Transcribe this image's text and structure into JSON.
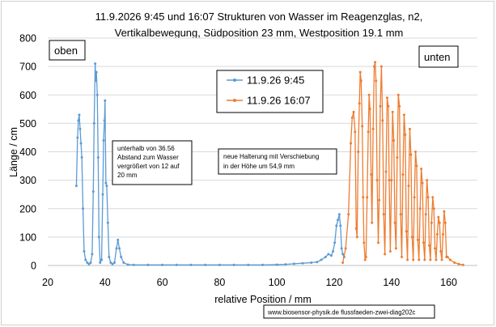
{
  "chart_data": {
    "type": "line",
    "title_line1": "11.9.2026  9:45 und 16:07  Strukturen von Wasser im Reagenzglas, n2,",
    "title_line2": "Vertikalbewegung, Südposition 23 mm, Westposition 19.1 mm",
    "xlabel": "relative Position / mm",
    "ylabel": "Länge / cm",
    "xlim": [
      20,
      170
    ],
    "ylim": [
      0,
      800
    ],
    "xticks": [
      20,
      40,
      60,
      80,
      100,
      120,
      140,
      160
    ],
    "yticks": [
      0,
      100,
      200,
      300,
      400,
      500,
      600,
      700,
      800
    ],
    "grid": "horizontal",
    "legend_position": "top-center",
    "series": [
      {
        "name": "11.9.26 9:45",
        "color": "#5b9bd5",
        "points": [
          [
            30.0,
            280
          ],
          [
            30.4,
            450
          ],
          [
            30.7,
            510
          ],
          [
            31.0,
            530
          ],
          [
            31.3,
            480
          ],
          [
            31.6,
            430
          ],
          [
            31.9,
            380
          ],
          [
            32.3,
            200
          ],
          [
            32.7,
            50
          ],
          [
            33.2,
            20
          ],
          [
            33.8,
            10
          ],
          [
            34.4,
            5
          ],
          [
            35.0,
            10
          ],
          [
            35.5,
            40
          ],
          [
            35.9,
            260
          ],
          [
            36.2,
            500
          ],
          [
            36.56,
            710
          ],
          [
            36.8,
            650
          ],
          [
            37.0,
            680
          ],
          [
            37.3,
            600
          ],
          [
            37.6,
            380
          ],
          [
            37.9,
            100
          ],
          [
            38.3,
            10
          ],
          [
            38.8,
            20
          ],
          [
            39.2,
            250
          ],
          [
            39.5,
            440
          ],
          [
            39.8,
            510
          ],
          [
            40.0,
            580
          ],
          [
            40.3,
            290
          ],
          [
            40.6,
            280
          ],
          [
            41.0,
            150
          ],
          [
            41.4,
            30
          ],
          [
            42.0,
            10
          ],
          [
            42.6,
            5
          ],
          [
            43.3,
            10
          ],
          [
            44.0,
            60
          ],
          [
            44.5,
            90
          ],
          [
            45.0,
            60
          ],
          [
            45.6,
            30
          ],
          [
            46.5,
            10
          ],
          [
            48.0,
            3
          ],
          [
            50.0,
            2
          ],
          [
            55.0,
            2
          ],
          [
            60.0,
            2
          ],
          [
            65.0,
            2
          ],
          [
            70.0,
            2
          ],
          [
            75.0,
            2
          ],
          [
            80.0,
            2
          ],
          [
            85.0,
            2
          ],
          [
            90.0,
            2
          ],
          [
            95.0,
            2
          ],
          [
            100.0,
            3
          ],
          [
            103.0,
            4
          ],
          [
            106.0,
            6
          ],
          [
            109.0,
            8
          ],
          [
            112.0,
            10
          ],
          [
            114.0,
            12
          ],
          [
            115.5,
            20
          ],
          [
            117.0,
            30
          ],
          [
            118.0,
            40
          ],
          [
            119.0,
            35
          ],
          [
            119.6,
            50
          ],
          [
            120.2,
            80
          ],
          [
            120.8,
            140
          ],
          [
            121.3,
            160
          ],
          [
            121.8,
            180
          ],
          [
            122.2,
            140
          ],
          [
            122.6,
            60
          ],
          [
            123.0,
            40
          ],
          [
            123.5,
            30
          ]
        ]
      },
      {
        "name": "11.9.26 16:07",
        "color": "#ed7d31",
        "points": [
          [
            123.0,
            10
          ],
          [
            124.0,
            60
          ],
          [
            125.0,
            180
          ],
          [
            125.8,
            430
          ],
          [
            126.3,
            520
          ],
          [
            126.8,
            540
          ],
          [
            127.3,
            470
          ],
          [
            127.7,
            130
          ],
          [
            128.0,
            100
          ],
          [
            128.4,
            400
          ],
          [
            128.8,
            570
          ],
          [
            129.1,
            680
          ],
          [
            129.4,
            650
          ],
          [
            129.8,
            490
          ],
          [
            130.1,
            240
          ],
          [
            130.4,
            80
          ],
          [
            130.8,
            20
          ],
          [
            131.1,
            30
          ],
          [
            131.5,
            240
          ],
          [
            131.9,
            470
          ],
          [
            132.2,
            600
          ],
          [
            132.5,
            550
          ],
          [
            132.9,
            320
          ],
          [
            133.2,
            150
          ],
          [
            133.6,
            480
          ],
          [
            134.0,
            700
          ],
          [
            134.3,
            715
          ],
          [
            134.6,
            650
          ],
          [
            135.0,
            300
          ],
          [
            135.4,
            80
          ],
          [
            135.7,
            230
          ],
          [
            136.1,
            560
          ],
          [
            136.5,
            700
          ],
          [
            136.9,
            510
          ],
          [
            137.3,
            180
          ],
          [
            137.7,
            40
          ],
          [
            138.1,
            330
          ],
          [
            138.5,
            590
          ],
          [
            138.9,
            560
          ],
          [
            139.2,
            300
          ],
          [
            139.6,
            50
          ],
          [
            140.0,
            300
          ],
          [
            140.4,
            540
          ],
          [
            140.8,
            440
          ],
          [
            141.2,
            150
          ],
          [
            141.6,
            60
          ],
          [
            142.0,
            380
          ],
          [
            142.4,
            600
          ],
          [
            142.8,
            560
          ],
          [
            143.2,
            180
          ],
          [
            143.6,
            30
          ],
          [
            144.0,
            320
          ],
          [
            144.4,
            530
          ],
          [
            144.8,
            460
          ],
          [
            145.2,
            120
          ],
          [
            145.6,
            20
          ],
          [
            146.0,
            280
          ],
          [
            146.4,
            480
          ],
          [
            146.8,
            390
          ],
          [
            147.2,
            100
          ],
          [
            147.6,
            20
          ],
          [
            148.0,
            240
          ],
          [
            148.4,
            400
          ],
          [
            148.8,
            350
          ],
          [
            149.2,
            90
          ],
          [
            149.6,
            20
          ],
          [
            150.0,
            200
          ],
          [
            150.4,
            340
          ],
          [
            150.8,
            290
          ],
          [
            151.2,
            80
          ],
          [
            151.6,
            20
          ],
          [
            152.0,
            180
          ],
          [
            152.4,
            300
          ],
          [
            152.8,
            240
          ],
          [
            153.2,
            70
          ],
          [
            153.6,
            20
          ],
          [
            154.0,
            150
          ],
          [
            154.4,
            240
          ],
          [
            154.8,
            200
          ],
          [
            155.2,
            60
          ],
          [
            155.6,
            20
          ],
          [
            156.0,
            110
          ],
          [
            156.4,
            170
          ],
          [
            156.8,
            150
          ],
          [
            157.2,
            50
          ],
          [
            157.6,
            20
          ],
          [
            158.0,
            110
          ],
          [
            158.4,
            190
          ],
          [
            158.8,
            150
          ],
          [
            159.2,
            30
          ],
          [
            159.6,
            30
          ],
          [
            160.5,
            20
          ],
          [
            162.0,
            10
          ],
          [
            163.5,
            5
          ],
          [
            165.0,
            2
          ]
        ]
      }
    ],
    "annotations": [
      {
        "id": "oben",
        "lines": [
          "oben"
        ]
      },
      {
        "id": "unten",
        "lines": [
          "unten"
        ]
      },
      {
        "id": "note-left",
        "lines": [
          "unterhalb von 36.56",
          "Abstand zum Wasser",
          "vergrößert von  12 auf",
          "20 mm"
        ]
      },
      {
        "id": "note-mid",
        "lines": [
          "neue Halterung mit Verschiebung",
          "in der Höhe um  54,9 mm"
        ]
      },
      {
        "id": "footer",
        "lines": [
          "www.biosensor-physik.de  flussfaeden-zwei-diag202c"
        ]
      }
    ]
  }
}
